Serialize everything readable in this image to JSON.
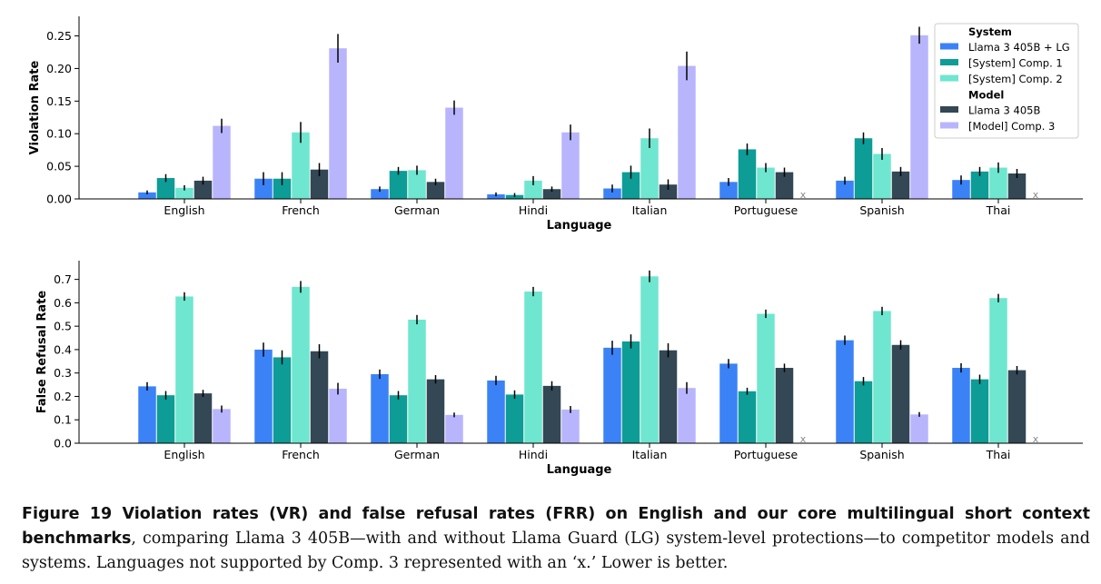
{
  "chart_data": [
    {
      "type": "bar",
      "title": "",
      "xlabel": "Language",
      "ylabel": "Violation Rate",
      "ylim": [
        0,
        0.28
      ],
      "yticks": [
        0.0,
        0.05,
        0.1,
        0.15,
        0.2,
        0.25
      ],
      "ytick_labels": [
        "0.00",
        "0.05",
        "0.10",
        "0.15",
        "0.20",
        "0.25"
      ],
      "categories": [
        "English",
        "French",
        "German",
        "Hindi",
        "Italian",
        "Portuguese",
        "Spanish",
        "Thai"
      ],
      "series": [
        {
          "name": "Llama 3 405B + LG",
          "color": "#3b82f6",
          "values": [
            0.01,
            0.031,
            0.015,
            0.007,
            0.016,
            0.026,
            0.028,
            0.029
          ],
          "errors": [
            0.003,
            0.01,
            0.004,
            0.003,
            0.006,
            0.006,
            0.006,
            0.007
          ]
        },
        {
          "name": "[System] Comp. 1",
          "color": "#0d9c96",
          "values": [
            0.032,
            0.031,
            0.043,
            0.006,
            0.041,
            0.076,
            0.093,
            0.042
          ],
          "errors": [
            0.006,
            0.01,
            0.006,
            0.003,
            0.01,
            0.009,
            0.009,
            0.007
          ]
        },
        {
          "name": "[System] Comp. 2",
          "color": "#6fe6cf",
          "values": [
            0.017,
            0.102,
            0.044,
            0.028,
            0.093,
            0.048,
            0.069,
            0.048
          ],
          "errors": [
            0.004,
            0.016,
            0.007,
            0.007,
            0.015,
            0.007,
            0.009,
            0.008
          ]
        },
        {
          "name": "Llama 3 405B",
          "color": "#334754",
          "values": [
            0.028,
            0.045,
            0.026,
            0.015,
            0.022,
            0.041,
            0.042,
            0.039
          ],
          "errors": [
            0.006,
            0.01,
            0.005,
            0.004,
            0.008,
            0.007,
            0.007,
            0.007
          ]
        },
        {
          "name": "[Model] Comp. 3",
          "color": "#b8b5fd",
          "values": [
            0.112,
            0.231,
            0.14,
            0.102,
            0.204,
            null,
            0.251,
            null
          ],
          "errors": [
            0.011,
            0.022,
            0.011,
            0.012,
            0.022,
            null,
            0.013,
            null
          ]
        }
      ],
      "legend": {
        "position": "top-right",
        "groups": [
          {
            "heading": "System",
            "entries": [
              "Llama 3 405B + LG",
              "[System] Comp. 1",
              "[System] Comp. 2"
            ]
          },
          {
            "heading": "Model",
            "entries": [
              "Llama 3 405B",
              "[Model] Comp. 3"
            ]
          }
        ]
      },
      "unsupported_marker": "x"
    },
    {
      "type": "bar",
      "title": "",
      "xlabel": "Language",
      "ylabel": "False Refusal Rate",
      "ylim": [
        0,
        0.78
      ],
      "yticks": [
        0.0,
        0.1,
        0.2,
        0.3,
        0.4,
        0.5,
        0.6,
        0.7
      ],
      "ytick_labels": [
        "0.0",
        "0.1",
        "0.2",
        "0.3",
        "0.4",
        "0.5",
        "0.6",
        "0.7"
      ],
      "categories": [
        "English",
        "French",
        "German",
        "Hindi",
        "Italian",
        "Portuguese",
        "Spanish",
        "Thai"
      ],
      "series": [
        {
          "name": "Llama 3 405B + LG",
          "color": "#3b82f6",
          "values": [
            0.243,
            0.4,
            0.295,
            0.268,
            0.408,
            0.34,
            0.44,
            0.322
          ],
          "errors": [
            0.018,
            0.03,
            0.02,
            0.02,
            0.03,
            0.02,
            0.02,
            0.02
          ]
        },
        {
          "name": "[System] Comp. 1",
          "color": "#0d9c96",
          "values": [
            0.205,
            0.367,
            0.205,
            0.208,
            0.435,
            0.222,
            0.265,
            0.273
          ],
          "errors": [
            0.018,
            0.03,
            0.018,
            0.018,
            0.03,
            0.015,
            0.018,
            0.02
          ]
        },
        {
          "name": "[System] Comp. 2",
          "color": "#6fe6cf",
          "values": [
            0.627,
            0.668,
            0.528,
            0.648,
            0.713,
            0.553,
            0.565,
            0.62
          ],
          "errors": [
            0.018,
            0.025,
            0.02,
            0.02,
            0.025,
            0.018,
            0.018,
            0.018
          ]
        },
        {
          "name": "Llama 3 405B",
          "color": "#334754",
          "values": [
            0.213,
            0.393,
            0.273,
            0.245,
            0.397,
            0.322,
            0.42,
            0.312
          ],
          "errors": [
            0.015,
            0.03,
            0.018,
            0.02,
            0.03,
            0.018,
            0.02,
            0.018
          ]
        },
        {
          "name": "[Model] Comp. 3",
          "color": "#b8b5fd",
          "values": [
            0.146,
            0.233,
            0.121,
            0.144,
            0.236,
            null,
            0.123,
            null
          ],
          "errors": [
            0.015,
            0.025,
            0.01,
            0.015,
            0.025,
            null,
            0.01,
            null
          ]
        }
      ],
      "unsupported_marker": "x"
    }
  ],
  "caption": {
    "heading": "Figure 19  Violation rates (VR) and false refusal rates (FRR) on English and our core multilingual short context benchmarks",
    "body": ", comparing Llama 3 405B—with and without Llama Guard (LG) system-level protections—to competitor models and systems. Languages not supported by Comp. 3 represented with an ‘x.’ Lower is better."
  }
}
